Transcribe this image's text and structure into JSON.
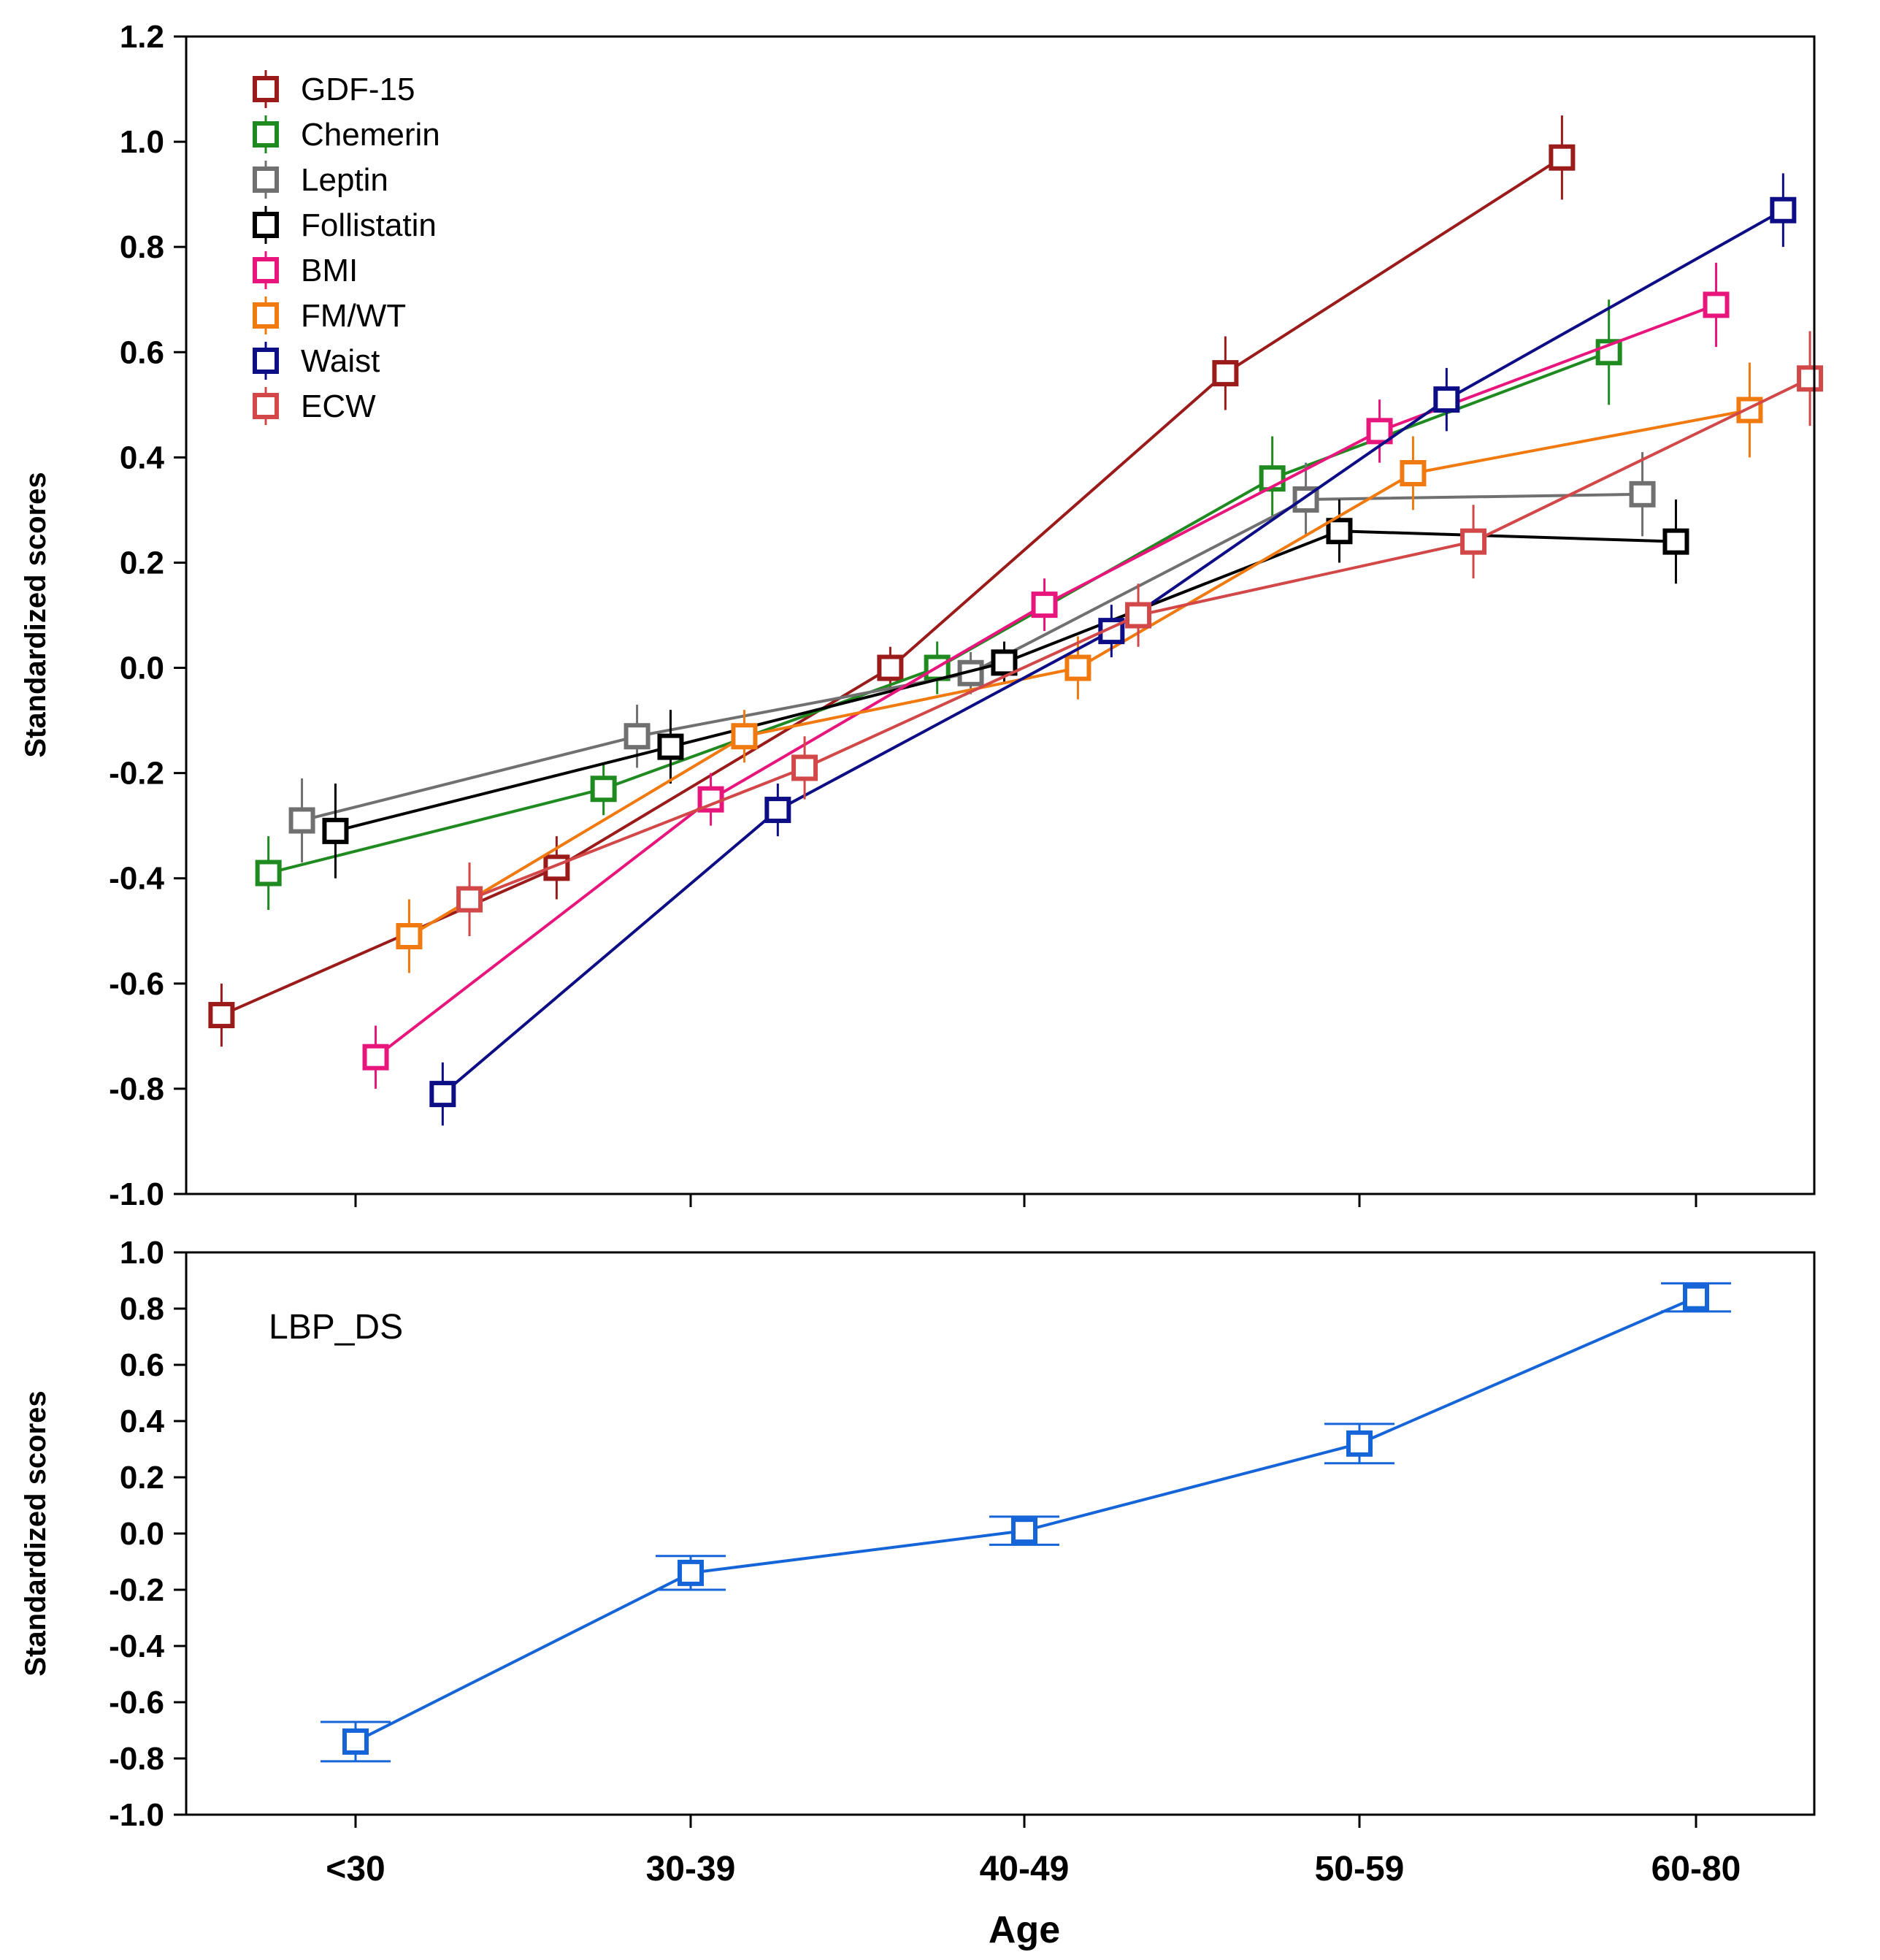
{
  "chart_data": [
    {
      "type": "line",
      "panel": "top",
      "ylabel": "Standardized scores",
      "ylim": [
        -1.0,
        1.2
      ],
      "yticks": [
        "1.2",
        "1.0",
        "0.8",
        "0.6",
        "0.4",
        "0.2",
        "0.0",
        "-0.2",
        "-0.4",
        "-0.6",
        "-0.8",
        "-1.0"
      ],
      "categories": [
        "<30",
        "30-39",
        "40-49",
        "50-59",
        "60-80"
      ],
      "series": [
        {
          "name": "GDF-15",
          "color": "#9B1B1B",
          "offset": -0.4,
          "values": [
            -0.66,
            -0.38,
            0.0,
            0.56,
            0.97
          ],
          "errors": [
            0.06,
            0.06,
            0.04,
            0.07,
            0.08
          ]
        },
        {
          "name": "Chemerin",
          "color": "#1F8A1F",
          "offset": -0.26,
          "values": [
            -0.39,
            -0.23,
            0.0,
            0.36,
            0.6
          ],
          "errors": [
            0.07,
            0.05,
            0.05,
            0.08,
            0.1
          ]
        },
        {
          "name": "Leptin",
          "color": "#707070",
          "offset": -0.16,
          "values": [
            -0.29,
            -0.13,
            -0.01,
            0.32,
            0.33
          ],
          "errors": [
            0.08,
            0.06,
            0.04,
            0.07,
            0.08
          ]
        },
        {
          "name": "Follistatin",
          "color": "#000000",
          "offset": -0.06,
          "values": [
            -0.31,
            -0.15,
            0.01,
            0.26,
            0.24
          ],
          "errors": [
            0.09,
            0.07,
            0.04,
            0.06,
            0.08
          ]
        },
        {
          "name": "BMI",
          "color": "#E8167C",
          "offset": 0.06,
          "values": [
            -0.74,
            -0.25,
            0.12,
            0.45,
            0.69
          ],
          "errors": [
            0.06,
            0.05,
            0.05,
            0.06,
            0.08
          ]
        },
        {
          "name": "FM/WT",
          "color": "#F07A10",
          "offset": 0.16,
          "values": [
            -0.51,
            -0.13,
            0.0,
            0.37,
            0.49
          ],
          "errors": [
            0.07,
            0.05,
            0.06,
            0.07,
            0.09
          ]
        },
        {
          "name": "Waist",
          "color": "#0D0D85",
          "offset": 0.26,
          "values": [
            -0.81,
            -0.27,
            0.07,
            0.51,
            0.87
          ],
          "errors": [
            0.06,
            0.05,
            0.05,
            0.06,
            0.07
          ]
        },
        {
          "name": "ECW",
          "color": "#D24848",
          "offset": 0.34,
          "values": [
            -0.44,
            -0.19,
            0.1,
            0.24,
            0.55
          ],
          "errors": [
            0.07,
            0.06,
            0.06,
            0.07,
            0.09
          ]
        }
      ]
    },
    {
      "type": "line",
      "panel": "bottom",
      "label": "LBP_DS",
      "ylabel": "Standardized scores",
      "xlabel": "Age",
      "ylim": [
        -1.0,
        1.0
      ],
      "yticks": [
        "1.0",
        "0.8",
        "0.6",
        "0.4",
        "0.2",
        "0.0",
        "-0.2",
        "-0.4",
        "-0.6",
        "-0.8",
        "-1.0"
      ],
      "categories": [
        "<30",
        "30-39",
        "40-49",
        "50-59",
        "60-80"
      ],
      "series": [
        {
          "name": "LBP_DS",
          "color": "#1565D8",
          "offset": 0.0,
          "values": [
            -0.74,
            -0.14,
            0.01,
            0.32,
            0.84
          ],
          "errors": [
            0.07,
            0.06,
            0.05,
            0.07,
            0.05
          ]
        }
      ]
    }
  ]
}
